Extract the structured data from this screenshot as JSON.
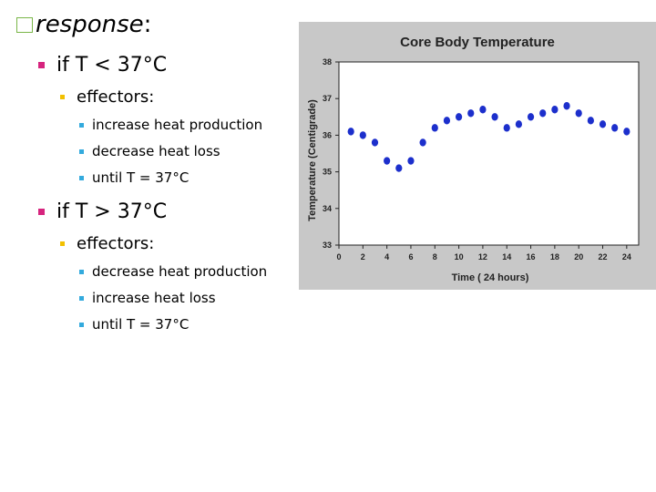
{
  "slide": {
    "title_em": "response",
    "title_suffix": ":",
    "groups": [
      {
        "condition": "if T < 37°C",
        "label": "effectors:",
        "items": [
          "increase heat production",
          "decrease heat loss",
          "until T = 37°C"
        ]
      },
      {
        "condition": "if T > 37°C",
        "label": "effectors:",
        "items": [
          "decrease heat production",
          "increase heat loss",
          "until T = 37°C"
        ]
      }
    ]
  },
  "colors": {
    "title_box": "#7ab648",
    "level1_bullet": "#d6247e",
    "level2_bullet": "#f2c000",
    "level3_bullet": "#33aadd",
    "chart_background": "#c8c8c8",
    "marker": "#1c2fcc"
  },
  "chart_data": {
    "type": "scatter",
    "title": "Core Body Temperature",
    "xlabel": "Time ( 24 hours)",
    "ylabel": "Temperature (Centigrade)",
    "xlim": [
      0,
      25
    ],
    "ylim": [
      33,
      38
    ],
    "xticks": [
      "0",
      "2",
      "4",
      "6",
      "8",
      "10",
      "12",
      "14",
      "16",
      "18",
      "20",
      "22",
      "24"
    ],
    "yticks": [
      "33",
      "34",
      "35",
      "36",
      "37",
      "38"
    ],
    "x": [
      1,
      2,
      3,
      4,
      5,
      6,
      7,
      8,
      9,
      10,
      11,
      12,
      13,
      14,
      15,
      16,
      17,
      18,
      19,
      20,
      21,
      22,
      23,
      24
    ],
    "y": [
      36.1,
      36.0,
      35.8,
      35.3,
      35.1,
      35.3,
      35.8,
      36.2,
      36.4,
      36.5,
      36.6,
      36.7,
      36.5,
      36.2,
      36.3,
      36.5,
      36.6,
      36.7,
      36.8,
      36.6,
      36.4,
      36.3,
      36.2,
      36.1
    ]
  }
}
